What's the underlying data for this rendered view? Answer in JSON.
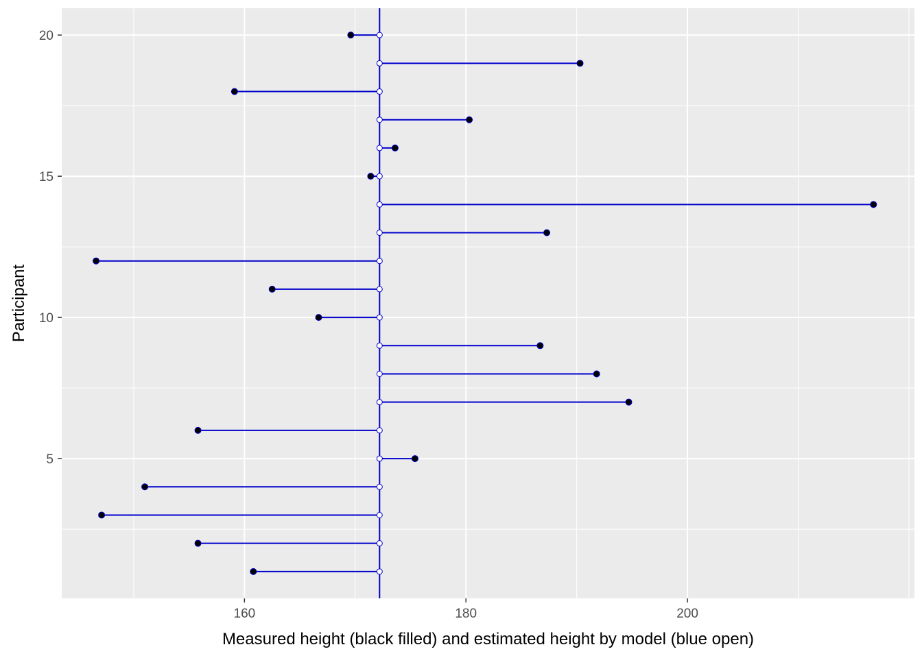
{
  "chart_data": {
    "type": "scatter",
    "title": "",
    "xlabel": "Measured height (black filled) and estimated height by model (blue open)",
    "ylabel": "Participant",
    "xlim": [
      143.5,
      220.5
    ],
    "ylim": [
      0.05,
      20.95
    ],
    "x_ticks": [
      160,
      180,
      200
    ],
    "y_ticks": [
      5,
      10,
      15,
      20
    ],
    "grid": true,
    "legend": "none",
    "model_estimate": 172.2,
    "series": [
      {
        "name": "",
        "marker": "filled",
        "color": "#000000",
        "points": [
          {
            "participant": 1,
            "height": 160.8
          },
          {
            "participant": 2,
            "height": 155.8
          },
          {
            "participant": 3,
            "height": 147.1
          },
          {
            "participant": 4,
            "height": 151.0
          },
          {
            "participant": 5,
            "height": 175.4
          },
          {
            "participant": 6,
            "height": 155.8
          },
          {
            "participant": 7,
            "height": 194.7
          },
          {
            "participant": 8,
            "height": 191.8
          },
          {
            "participant": 9,
            "height": 186.7
          },
          {
            "participant": 10,
            "height": 166.7
          },
          {
            "participant": 11,
            "height": 162.5
          },
          {
            "participant": 12,
            "height": 146.6
          },
          {
            "participant": 13,
            "height": 187.3
          },
          {
            "participant": 14,
            "height": 216.8
          },
          {
            "participant": 15,
            "height": 171.4
          },
          {
            "participant": 16,
            "height": 173.6
          },
          {
            "participant": 17,
            "height": 180.3
          },
          {
            "participant": 18,
            "height": 159.1
          },
          {
            "participant": 19,
            "height": 190.3
          },
          {
            "participant": 20,
            "height": 169.6
          }
        ]
      },
      {
        "name": "",
        "marker": "open",
        "color": "#0000cd",
        "points": [
          {
            "participant": 1,
            "height": 172.2
          },
          {
            "participant": 2,
            "height": 172.2
          },
          {
            "participant": 3,
            "height": 172.2
          },
          {
            "participant": 4,
            "height": 172.2
          },
          {
            "participant": 5,
            "height": 172.2
          },
          {
            "participant": 6,
            "height": 172.2
          },
          {
            "participant": 7,
            "height": 172.2
          },
          {
            "participant": 8,
            "height": 172.2
          },
          {
            "participant": 9,
            "height": 172.2
          },
          {
            "participant": 10,
            "height": 172.2
          },
          {
            "participant": 11,
            "height": 172.2
          },
          {
            "participant": 12,
            "height": 172.2
          },
          {
            "participant": 13,
            "height": 172.2
          },
          {
            "participant": 14,
            "height": 172.2
          },
          {
            "participant": 15,
            "height": 172.2
          },
          {
            "participant": 16,
            "height": 172.2
          },
          {
            "participant": 17,
            "height": 172.2
          },
          {
            "participant": 18,
            "height": 172.2
          },
          {
            "participant": 19,
            "height": 172.2
          },
          {
            "participant": 20,
            "height": 172.2
          }
        ]
      }
    ],
    "colors": {
      "panel_background": "#ebebeb",
      "grid": "#ffffff",
      "segment": "#0000cd",
      "measured": "#000000",
      "estimate_fill": "#ffffff"
    }
  }
}
